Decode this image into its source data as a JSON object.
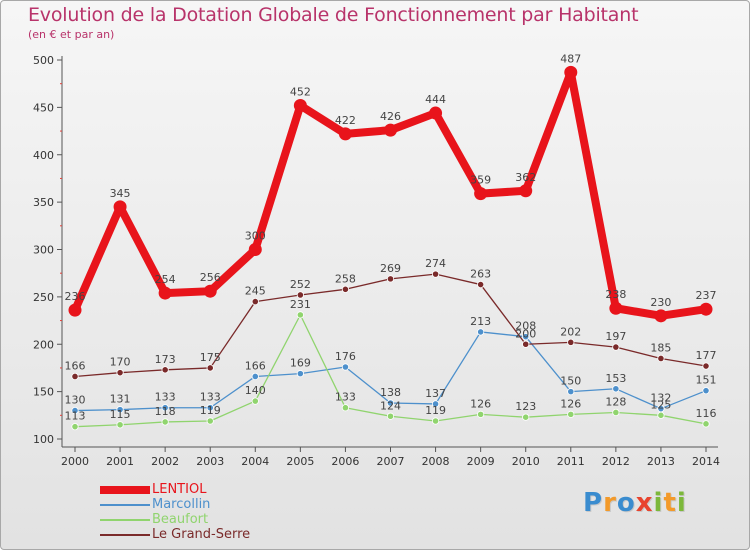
{
  "header": {
    "title": "Evolution de la Dotation Globale de Fonctionnement par Habitant",
    "subtitle": "(en € et par an)"
  },
  "brand": {
    "letters": [
      "P",
      "r",
      "o",
      "x",
      "i",
      "t",
      "i"
    ],
    "colors": [
      "#3a8ccf",
      "#f39a2a",
      "#3a8ccf",
      "#e8442e",
      "#7cb83a",
      "#f39a2a",
      "#7cb83a"
    ]
  },
  "colors": {
    "title": "#b8336a",
    "axis": "#555555",
    "grid_tick": "#e0413a"
  },
  "chart_data": {
    "type": "line",
    "title": "Evolution de la Dotation Globale de Fonctionnement par Habitant",
    "subtitle": "(en € et par an)",
    "xlabel": "",
    "ylabel": "",
    "ylim": [
      100,
      500
    ],
    "yticks": [
      100,
      150,
      200,
      250,
      300,
      350,
      400,
      450,
      500
    ],
    "x": [
      "2000",
      "2001",
      "2002",
      "2003",
      "2004",
      "2005",
      "2006",
      "2007",
      "2008",
      "2009",
      "2010",
      "2011",
      "2012",
      "2013",
      "2014"
    ],
    "series": [
      {
        "name": "LENTIOL",
        "color": "#e8141b",
        "values": [
          236,
          345,
          254,
          256,
          300,
          452,
          422,
          426,
          444,
          359,
          362,
          487,
          238,
          230,
          237
        ],
        "labels": [
          "236",
          "345",
          "254",
          "256",
          "300",
          "452",
          "422",
          "426",
          "444",
          "359",
          "362",
          "487",
          "238",
          "230",
          "237"
        ]
      },
      {
        "name": "Marcollin",
        "color": "#4d90cc",
        "values": [
          130,
          131,
          133,
          133,
          166,
          169,
          176,
          138,
          137,
          213,
          208,
          150,
          153,
          132,
          151
        ],
        "labels": [
          "130",
          "131",
          "133",
          "133",
          "166",
          "169",
          "176",
          "138",
          "137",
          "213",
          "208",
          "150",
          "153",
          "132",
          "151"
        ]
      },
      {
        "name": "Beaufort",
        "color": "#90d46e",
        "values": [
          113,
          115,
          118,
          119,
          140,
          231,
          133,
          124,
          119,
          126,
          123,
          126,
          128,
          125,
          116
        ],
        "labels": [
          "113",
          "115",
          "118",
          "119",
          "140",
          "231",
          "133",
          "124",
          "119",
          "126",
          "123",
          "126",
          "128",
          "125",
          "116"
        ]
      },
      {
        "name": "Le Grand-Serre",
        "color": "#7a2a2a",
        "values": [
          166,
          170,
          173,
          175,
          245,
          252,
          258,
          269,
          274,
          263,
          200,
          202,
          197,
          185,
          177
        ],
        "labels": [
          "166",
          "170",
          "173",
          "175",
          "245",
          "252",
          "258",
          "269",
          "274",
          "263",
          "200",
          "202",
          "197",
          "185",
          "177"
        ]
      }
    ],
    "legend_position": "bottom-left"
  }
}
